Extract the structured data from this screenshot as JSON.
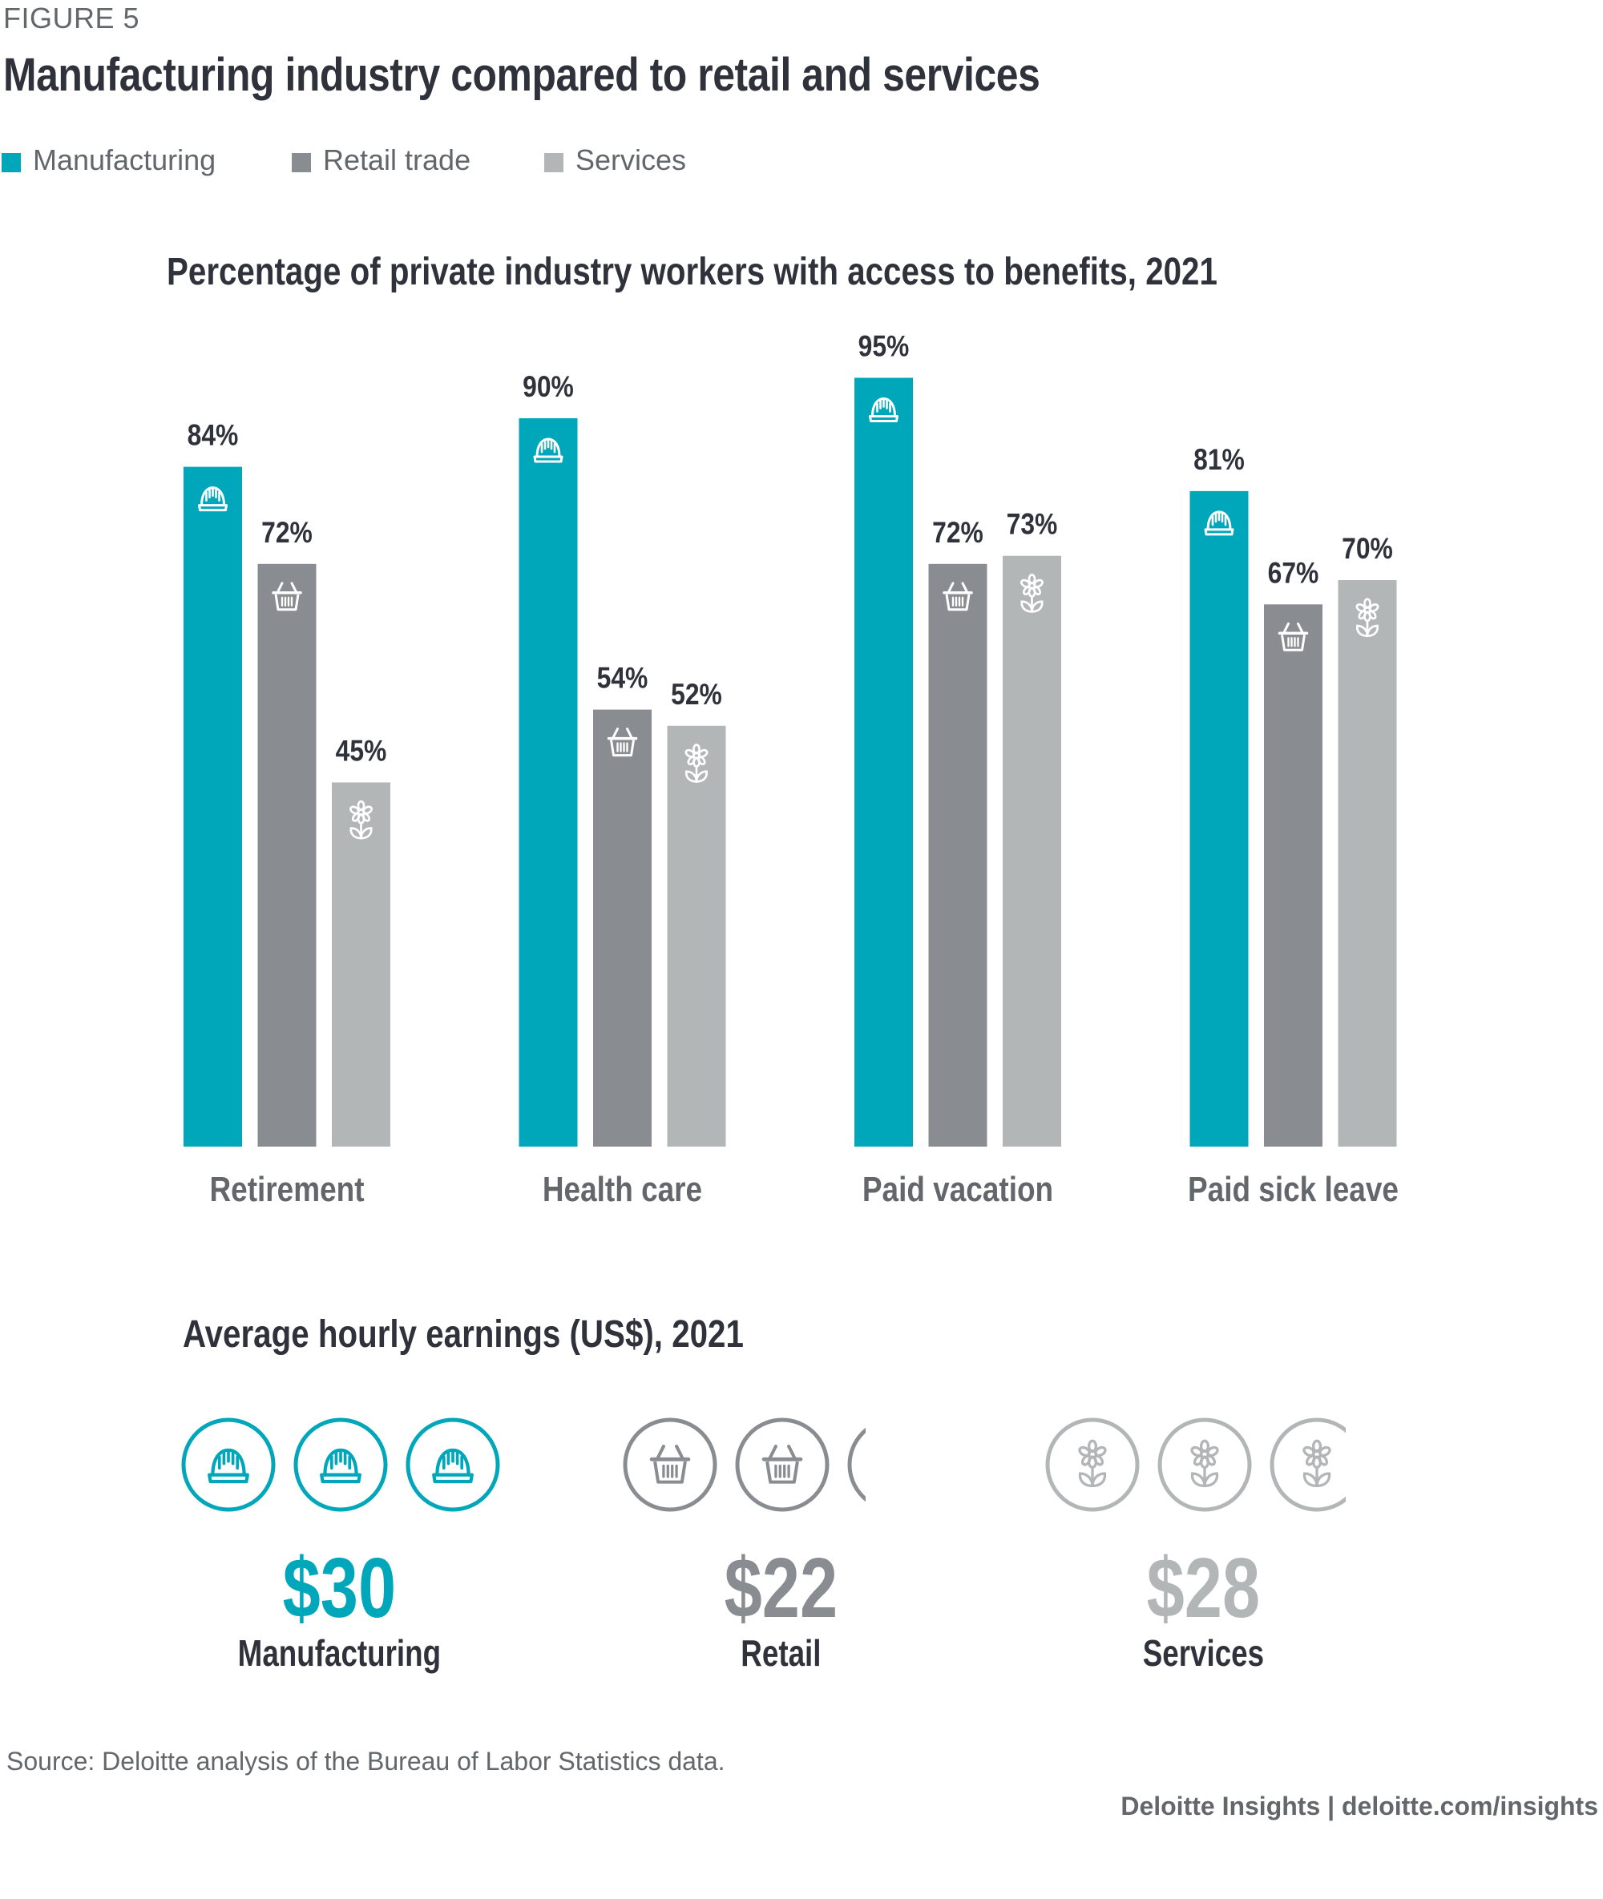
{
  "figure_label": "FIGURE 5",
  "title": "Manufacturing industry compared to retail and services",
  "legend": [
    {
      "label": "Manufacturing",
      "color": "#00a7ba"
    },
    {
      "label": "Retail trade",
      "color": "#898c90"
    },
    {
      "label": "Services",
      "color": "#b3b6b7"
    }
  ],
  "chart_data": [
    {
      "type": "bar",
      "title": "Percentage of private industry workers with access to benefits, 2021",
      "xlabel": "",
      "ylabel": "",
      "ylim": [
        0,
        100
      ],
      "grid": false,
      "categories": [
        "Retirement",
        "Health care",
        "Paid vacation",
        "Paid sick leave"
      ],
      "series": [
        {
          "name": "Manufacturing",
          "icon": "hard-hat-icon",
          "color": "#00a7ba",
          "values": [
            84,
            90,
            95,
            81
          ],
          "labels": [
            "84%",
            "90%",
            "95%",
            "81%"
          ]
        },
        {
          "name": "Retail trade",
          "icon": "shopping-basket-icon",
          "color": "#898c90",
          "values": [
            72,
            54,
            72,
            67
          ],
          "labels": [
            "72%",
            "54%",
            "72%",
            "67%"
          ]
        },
        {
          "name": "Services",
          "icon": "flower-icon",
          "color": "#b3b6b7",
          "values": [
            45,
            52,
            73,
            70
          ],
          "labels": [
            "45%",
            "52%",
            "73%",
            "70%"
          ]
        }
      ]
    },
    {
      "type": "pictogram",
      "title": "Average hourly earnings (US$), 2021",
      "unit_per_icon": 10,
      "items": [
        {
          "name": "Manufacturing",
          "value": 30,
          "value_label": "$30",
          "icon": "hard-hat-icon",
          "color": "#00a7ba"
        },
        {
          "name": "Retail",
          "value": 22,
          "value_label": "$22",
          "icon": "shopping-basket-icon",
          "color": "#898c90"
        },
        {
          "name": "Services",
          "value": 28,
          "value_label": "$28",
          "icon": "flower-icon",
          "color": "#b3b6b7"
        }
      ]
    }
  ],
  "source": "Source: Deloitte analysis of the Bureau of Labor Statistics data.",
  "footer": "Deloitte Insights | deloitte.com/insights"
}
